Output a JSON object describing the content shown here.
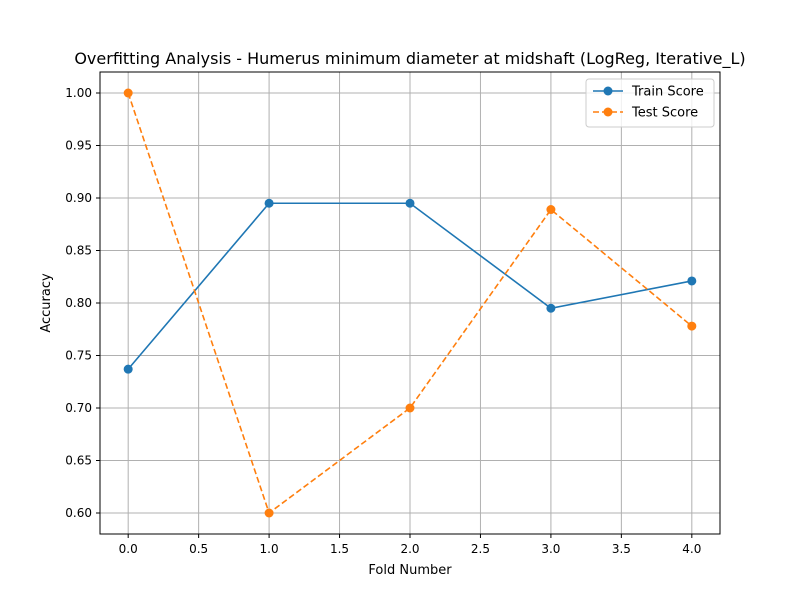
{
  "chart_data": {
    "type": "line",
    "title": "Overfitting Analysis - Humerus minimum diameter at midshaft (LogReg, Iterative_L)",
    "xlabel": "Fold Number",
    "ylabel": "Accuracy",
    "x": [
      0,
      1,
      2,
      3,
      4
    ],
    "xlim": [
      -0.2,
      4.2
    ],
    "ylim": [
      0.58,
      1.02
    ],
    "xticks": [
      "0.0",
      "0.5",
      "1.0",
      "1.5",
      "2.0",
      "2.5",
      "3.0",
      "3.5",
      "4.0"
    ],
    "yticks": [
      "0.60",
      "0.65",
      "0.70",
      "0.75",
      "0.80",
      "0.85",
      "0.90",
      "0.95",
      "1.00"
    ],
    "grid": true,
    "legend_position": "top-right",
    "series": [
      {
        "name": "Train Score",
        "values": [
          0.737,
          0.895,
          0.895,
          0.795,
          0.821
        ],
        "color": "#1f77b4",
        "line_style": "solid",
        "marker": "circle"
      },
      {
        "name": "Test Score",
        "values": [
          1.0,
          0.6,
          0.7,
          0.889,
          0.778
        ],
        "color": "#ff7f0e",
        "line_style": "dashed",
        "marker": "circle"
      }
    ]
  }
}
